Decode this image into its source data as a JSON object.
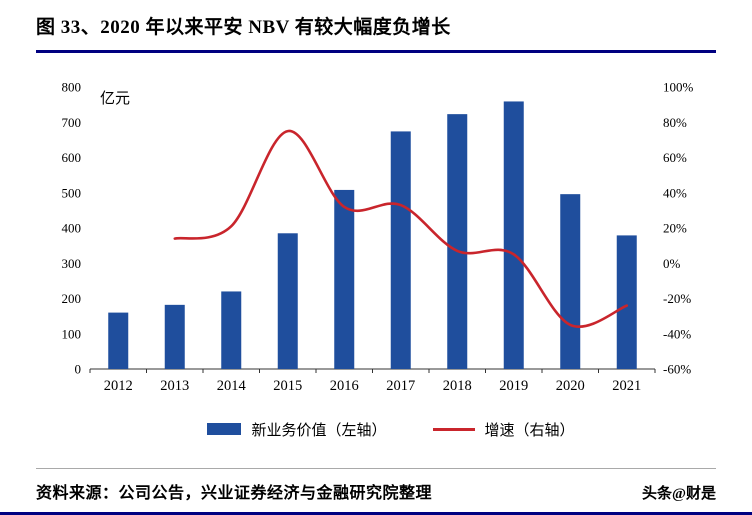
{
  "title": "图 33、2020 年以来平安 NBV 有较大幅度负增长",
  "colors": {
    "bar": "#1f4e9d",
    "line": "#c9252c",
    "accent_rule": "#000080",
    "axis": "#333333"
  },
  "chart_data": {
    "type": "bar",
    "subtype": "bar+line dual axis",
    "unit_label": "亿元",
    "categories": [
      "2012",
      "2013",
      "2014",
      "2015",
      "2016",
      "2017",
      "2018",
      "2019",
      "2020",
      "2021"
    ],
    "series": [
      {
        "name": "新业务价值（左轴）",
        "type": "bar",
        "axis": "left",
        "color": "#1f4e9d",
        "values": [
          160,
          182,
          220,
          385,
          508,
          674,
          723,
          759,
          496,
          379
        ]
      },
      {
        "name": "增速（右轴）",
        "type": "line",
        "axis": "right",
        "color": "#c9252c",
        "values": [
          null,
          14,
          21,
          75,
          32,
          33,
          7,
          5,
          -35,
          -24
        ]
      }
    ],
    "left_axis": {
      "min": 0,
      "max": 800,
      "step": 100,
      "ticks": [
        "0",
        "100",
        "200",
        "300",
        "400",
        "500",
        "600",
        "700",
        "800"
      ]
    },
    "right_axis": {
      "min": -60,
      "max": 100,
      "step": 20,
      "format": "percent",
      "ticks": [
        "-60%",
        "-40%",
        "-20%",
        "0%",
        "20%",
        "40%",
        "60%",
        "80%",
        "100%"
      ]
    },
    "grid": false,
    "legend_position": "bottom"
  },
  "footer": {
    "source": "资料来源：公司公告，兴业证券经济与金融研究院整理",
    "watermark": "头条@财是"
  }
}
